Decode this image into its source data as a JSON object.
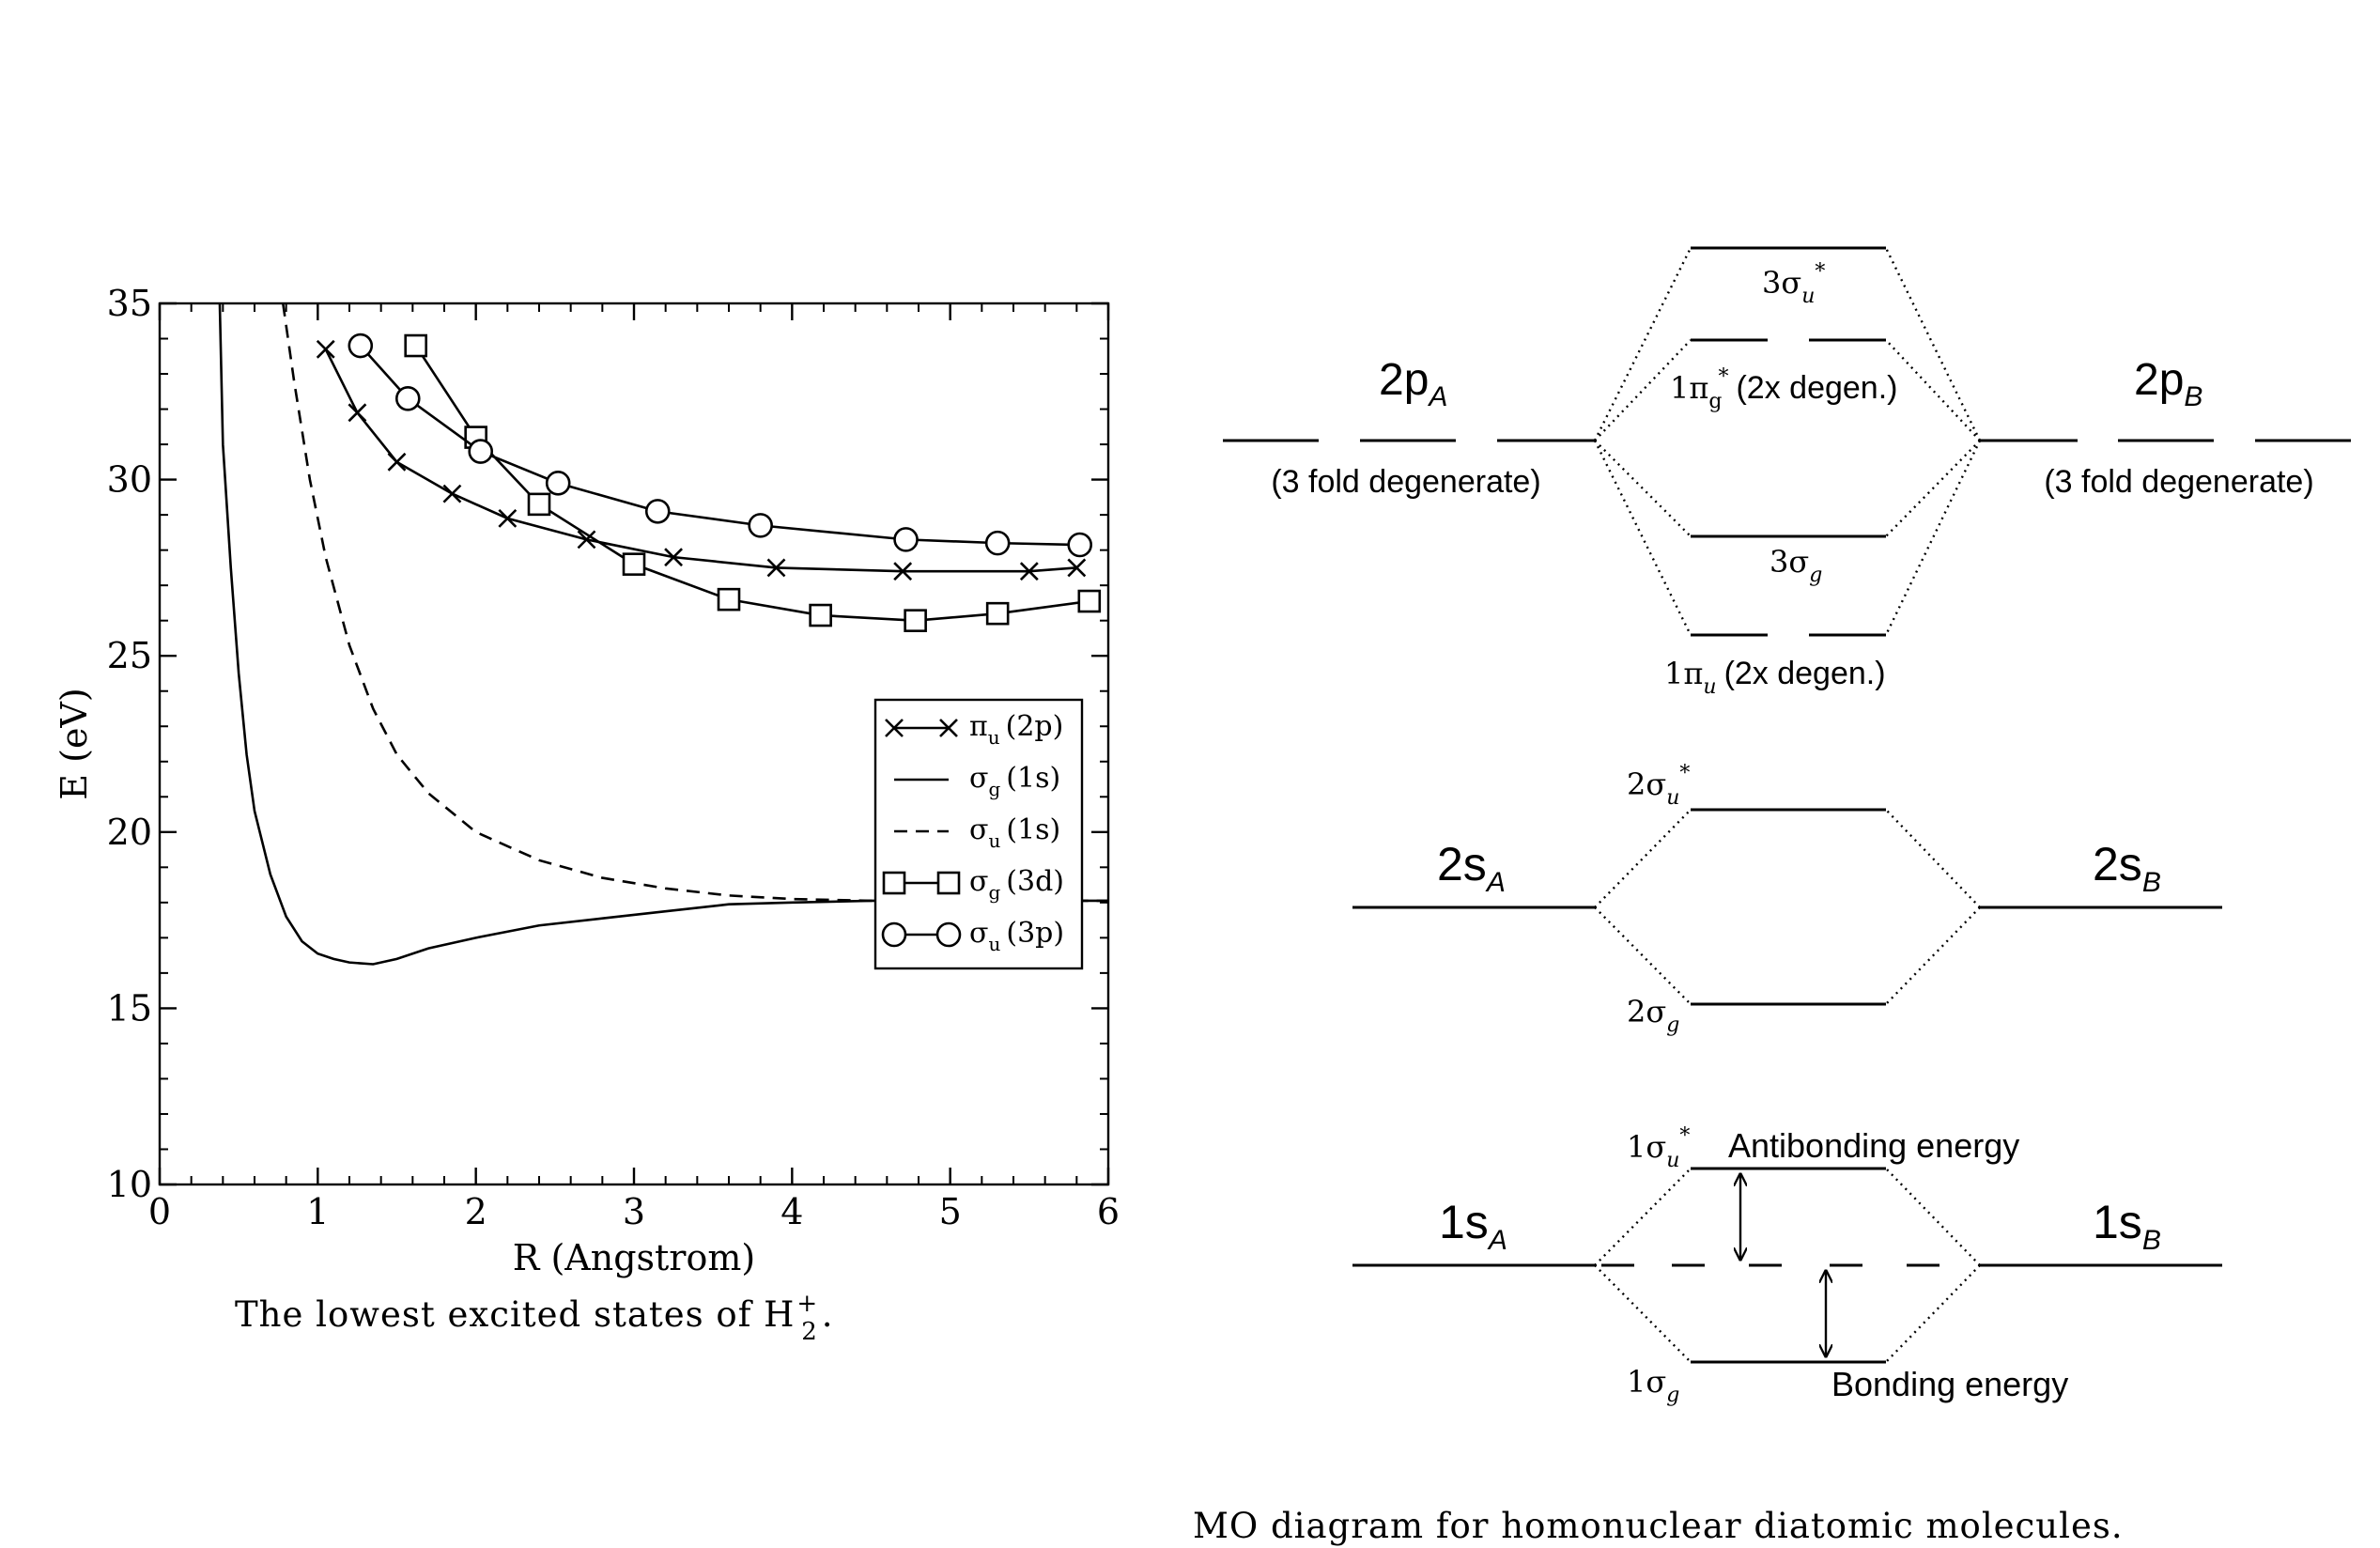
{
  "chart_data": {
    "type": "line",
    "xlabel": "R (Angstrom)",
    "ylabel": "E (eV)",
    "xlim": [
      0,
      6
    ],
    "ylim": [
      10,
      35
    ],
    "x_ticks": [
      "0",
      "1",
      "2",
      "3",
      "4",
      "5",
      "6"
    ],
    "y_ticks": [
      "10",
      "15",
      "20",
      "25",
      "30",
      "35"
    ],
    "grid": false,
    "legend_position": "right-middle",
    "series": [
      {
        "name_main": "π",
        "name_sub": "u",
        "name_tail": "(2p)",
        "style": "line-x",
        "x": [
          1.05,
          1.25,
          1.5,
          1.85,
          2.2,
          2.7,
          3.25,
          3.9,
          4.7,
          5.5,
          5.8
        ],
        "y": [
          33.7,
          31.9,
          30.5,
          29.6,
          28.9,
          28.3,
          27.8,
          27.5,
          27.4,
          27.4,
          27.5
        ]
      },
      {
        "name_main": "σ",
        "name_sub": "g",
        "name_tail": "(1s)",
        "style": "solid",
        "x": [
          0.38,
          0.4,
          0.45,
          0.5,
          0.55,
          0.6,
          0.7,
          0.8,
          0.9,
          1.0,
          1.1,
          1.2,
          1.35,
          1.5,
          1.7,
          2.0,
          2.4,
          2.8,
          3.2,
          3.6,
          4.0,
          4.5,
          5.0,
          5.5,
          6.0
        ],
        "y": [
          35,
          31,
          27.5,
          24.5,
          22.2,
          20.6,
          18.8,
          17.6,
          16.9,
          16.55,
          16.4,
          16.3,
          16.25,
          16.4,
          16.7,
          17.0,
          17.35,
          17.55,
          17.75,
          17.95,
          18.0,
          18.05,
          18.05,
          18.05,
          18.05
        ]
      },
      {
        "name_main": "σ",
        "name_sub": "u",
        "name_tail": "(1s)",
        "style": "dashed",
        "x": [
          0.78,
          0.85,
          0.95,
          1.05,
          1.2,
          1.35,
          1.5,
          1.7,
          2.0,
          2.4,
          2.8,
          3.2,
          3.6,
          4.0,
          4.5,
          5.0,
          5.5,
          6.0
        ],
        "y": [
          35,
          32.8,
          30.0,
          27.8,
          25.3,
          23.5,
          22.2,
          21.1,
          20.0,
          19.2,
          18.7,
          18.4,
          18.2,
          18.1,
          18.05,
          18.05,
          18.05,
          18.05
        ]
      },
      {
        "name_main": "σ",
        "name_sub": "g",
        "name_tail": "(3d)",
        "style": "line-square",
        "x": [
          1.62,
          2.0,
          2.4,
          3.0,
          3.6,
          4.18,
          4.78,
          5.3,
          5.88
        ],
        "y": [
          33.8,
          31.2,
          29.3,
          27.6,
          26.6,
          26.15,
          26.0,
          26.2,
          26.55
        ]
      },
      {
        "name_main": "σ",
        "name_sub": "u",
        "name_tail": "(3p)",
        "style": "line-circle",
        "x": [
          1.27,
          1.57,
          2.03,
          2.52,
          3.15,
          3.8,
          4.72,
          5.3,
          5.82
        ],
        "y": [
          33.8,
          32.3,
          30.8,
          29.9,
          29.1,
          28.7,
          28.3,
          28.2,
          28.15
        ]
      }
    ]
  },
  "caption_left": {
    "text_main": "The lowest excited states of H",
    "sup": "+",
    "sub": "2",
    "tail": "."
  },
  "mo_diagram": {
    "caption": "MO diagram for homonuclear diatomic molecules.",
    "atomic": {
      "p_left": {
        "main": "2p",
        "sub": "A"
      },
      "p_right": {
        "main": "2p",
        "sub": "B"
      },
      "degenerate_note": "(3 fold degenerate)",
      "s2_left": {
        "main": "2s",
        "sub": "A"
      },
      "s2_right": {
        "main": "2s",
        "sub": "B"
      },
      "s1_left": {
        "main": "1s",
        "sub": "A"
      },
      "s1_right": {
        "main": "1s",
        "sub": "B"
      }
    },
    "molecular": {
      "sigma3u": {
        "pre": "3σ",
        "sub": "u",
        "sup": "*"
      },
      "pi1g": {
        "pre": "1π",
        "sub": "g",
        "sup": "*",
        "note": "(2x degen.)"
      },
      "sigma3g": {
        "pre": "3σ",
        "sub": "g"
      },
      "pi1u": {
        "pre": "1π",
        "sub": "u",
        "note": "(2x degen.)"
      },
      "sigma2u": {
        "pre": "2σ",
        "sub": "u",
        "sup": "*"
      },
      "sigma2g": {
        "pre": "2σ",
        "sub": "g"
      },
      "sigma1u": {
        "pre": "1σ",
        "sub": "u",
        "sup": "*"
      },
      "sigma1g": {
        "pre": "1σ",
        "sub": "g"
      }
    },
    "antibonding_label": "Antibonding energy",
    "bonding_label": "Bonding energy"
  }
}
